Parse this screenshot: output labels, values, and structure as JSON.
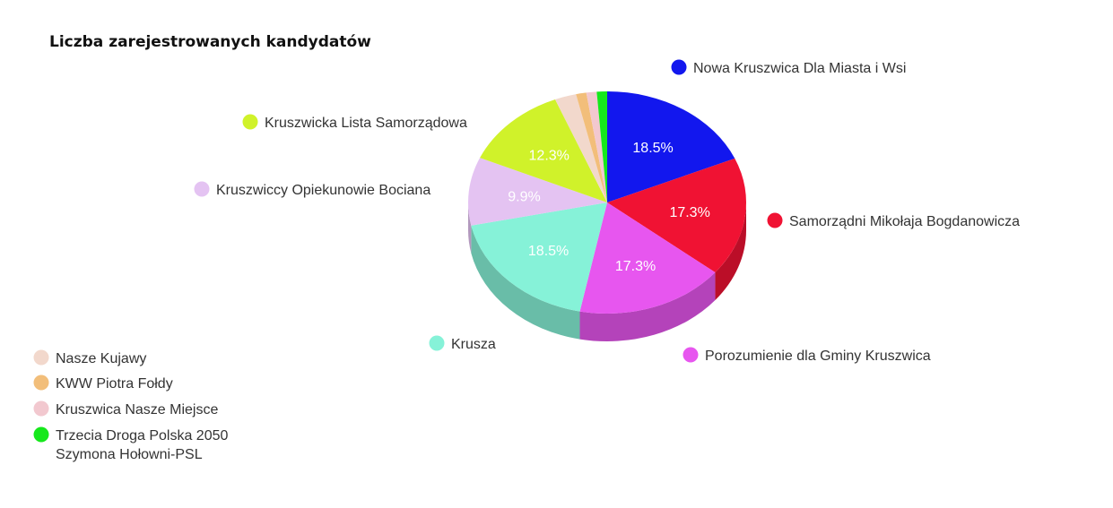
{
  "chart_data": {
    "type": "pie",
    "title": "Liczba zarejestrowanych kandydatów",
    "slices": [
      {
        "name": "Nowa Kruszwica Dla Miasta i Wsi",
        "value": 18.5,
        "label": "18.5%",
        "color": "#1217ee"
      },
      {
        "name": "Samorządni Mikołaja Bogdanowicza",
        "value": 17.3,
        "label": "17.3%",
        "color": "#f01233"
      },
      {
        "name": "Porozumienie dla Gminy Kruszwica",
        "value": 17.3,
        "label": "17.3%",
        "color": "#e756ef"
      },
      {
        "name": "Krusza",
        "value": 18.5,
        "label": "18.5%",
        "color": "#86f2d8"
      },
      {
        "name": "Kruszwiccy Opiekunowie Bociana",
        "value": 9.9,
        "label": "9.9%",
        "color": "#e4c3f2"
      },
      {
        "name": "Kruszwicka Lista Samorządowa",
        "value": 12.3,
        "label": "12.3%",
        "color": "#d0f22a"
      },
      {
        "name": "Nasze Kujawy",
        "value": 2.5,
        "label": "",
        "color": "#f2d8cc"
      },
      {
        "name": "KWW Piotra Fołdy",
        "value": 1.2,
        "label": "",
        "color": "#f2be7a"
      },
      {
        "name": "Kruszwica Nasze Miejsce",
        "value": 1.2,
        "label": "",
        "color": "#f2c8cf"
      },
      {
        "name": "Trzecia Droga Polska 2050 Szymona Hołowni-PSL",
        "value": 1.2,
        "label": "",
        "color": "#16e81c"
      }
    ],
    "legend": "around the pie and bottom-left"
  }
}
